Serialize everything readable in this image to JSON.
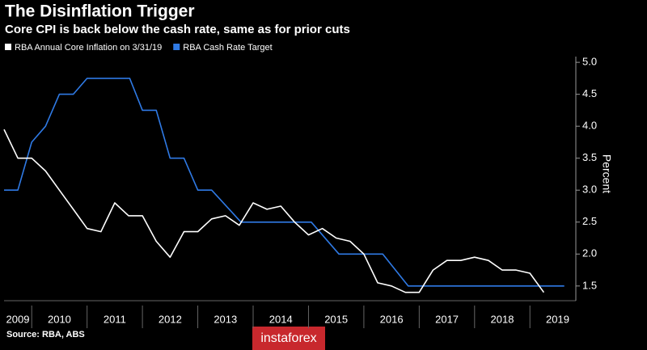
{
  "chart_data": {
    "type": "line",
    "title": "The Disinflation Trigger",
    "subtitle": "Core CPI is back below the cash rate, same as for prior cuts",
    "y_label": "Percent",
    "source": "Source: RBA, ABS",
    "watermark": "instaforex",
    "xlim": [
      2009.5,
      2019.8
    ],
    "ylim": [
      1.27,
      5.09
    ],
    "yticks": [
      1.5,
      {
        "value": 2.0,
        "label": "2.0"
      },
      2.5,
      {
        "value": 3.0,
        "label": "3.0"
      },
      3.5,
      {
        "value": 4.0,
        "label": "4.0"
      },
      4.5,
      {
        "value": 5.0,
        "label": "5.0"
      }
    ],
    "xticks": [
      {
        "value": 2009.5,
        "label": "2009"
      },
      {
        "value": 2010.5,
        "label": "2010"
      },
      {
        "value": 2011.5,
        "label": "2011"
      },
      {
        "value": 2012.5,
        "label": "2012"
      },
      {
        "value": 2013.5,
        "label": "2013"
      },
      {
        "value": 2014.5,
        "label": "2014"
      },
      {
        "value": 2015.5,
        "label": "2015"
      },
      {
        "value": 2016.5,
        "label": "2016"
      },
      {
        "value": 2017.5,
        "label": "2017"
      },
      {
        "value": 2018.5,
        "label": "2018"
      },
      {
        "value": 2019.5,
        "label": "2019"
      }
    ],
    "grid": false,
    "legend": "top-left",
    "series": [
      {
        "name": "RBA Annual Core Inflation on 3/31/19",
        "color": "#ffffff",
        "x": [
          2009.5,
          2009.75,
          2010.0,
          2010.25,
          2010.5,
          2010.75,
          2011.0,
          2011.25,
          2011.5,
          2011.75,
          2012.0,
          2012.25,
          2012.5,
          2012.75,
          2013.0,
          2013.25,
          2013.5,
          2013.75,
          2014.0,
          2014.25,
          2014.5,
          2014.75,
          2015.0,
          2015.25,
          2015.5,
          2015.75,
          2016.0,
          2016.25,
          2016.5,
          2016.75,
          2017.0,
          2017.25,
          2017.5,
          2017.75,
          2018.0,
          2018.25,
          2018.5,
          2018.75,
          2019.0,
          2019.25
        ],
        "values": [
          3.95,
          3.5,
          3.5,
          3.3,
          3.0,
          2.7,
          2.4,
          2.35,
          2.8,
          2.6,
          2.6,
          2.2,
          1.95,
          2.35,
          2.35,
          2.55,
          2.6,
          2.45,
          2.8,
          2.7,
          2.75,
          2.5,
          2.3,
          2.4,
          2.25,
          2.2,
          2.0,
          1.55,
          1.5,
          1.4,
          1.4,
          1.75,
          1.9,
          1.9,
          1.95,
          1.9,
          1.75,
          1.75,
          1.7,
          1.4
        ]
      },
      {
        "name": "RBA Cash Rate Target",
        "color": "#2f7ae5",
        "x": [
          2009.5,
          2009.75,
          2010.0,
          2010.25,
          2010.5,
          2010.75,
          2011.0,
          2011.77,
          2012.0,
          2012.25,
          2012.5,
          2012.75,
          2013.0,
          2013.25,
          2013.78,
          2015.05,
          2015.55,
          2016.34,
          2016.8,
          2019.62
        ],
        "values": [
          3.0,
          3.0,
          3.75,
          4.0,
          4.5,
          4.5,
          4.75,
          4.75,
          4.25,
          4.25,
          3.5,
          3.5,
          3.0,
          3.0,
          2.5,
          2.5,
          2.0,
          2.0,
          1.5,
          1.5
        ]
      }
    ]
  }
}
